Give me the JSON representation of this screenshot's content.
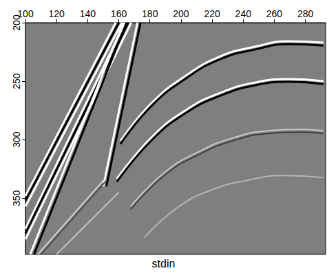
{
  "chart_data": {
    "type": "line",
    "title": "stdin",
    "xlim": [
      100,
      293
    ],
    "xticks": [
      100,
      120,
      140,
      160,
      180,
      200,
      220,
      240,
      260,
      280
    ],
    "ylim": [
      200,
      398
    ],
    "yticks": [
      200,
      250,
      300,
      350
    ],
    "grid": false,
    "series": [
      {
        "color": "#ffffff",
        "x": [
          100,
          158
        ],
        "values": [
          348,
          200
        ]
      },
      {
        "color": "#000000",
        "x": [
          100,
          160
        ],
        "values": [
          352,
          200
        ]
      },
      {
        "color": "#ffffff",
        "x": [
          100,
          162
        ],
        "values": [
          357,
          200
        ]
      },
      {
        "color": "#ffffff",
        "x": [
          100,
          164
        ],
        "values": [
          376,
          200
        ]
      },
      {
        "color": "#000000",
        "x": [
          100,
          166
        ],
        "values": [
          380,
          200
        ]
      },
      {
        "color": "#ffffff",
        "x": [
          100,
          168
        ],
        "values": [
          385,
          200
        ]
      },
      {
        "color": "#ffffff",
        "x": [
          103,
          163
        ],
        "values": [
          398,
          200
        ]
      },
      {
        "color": "#000000",
        "x": [
          105.5,
          165
        ],
        "values": [
          398,
          200
        ]
      },
      {
        "color": "#ffffff",
        "x": [
          150,
          172
        ],
        "values": [
          340,
          200
        ]
      },
      {
        "color": "#000000",
        "x": [
          152,
          174
        ],
        "values": [
          340,
          200
        ]
      },
      {
        "color": "#ffffff",
        "x": [
          161.1,
          181,
          203.1,
          225.2,
          247.3,
          269.5,
          291.6
        ],
        "values": [
          301.2,
          268.8,
          245.3,
          228.8,
          220.6,
          215.9,
          217.1
        ]
      },
      {
        "color": "#000000",
        "x": [
          161.1,
          181,
          203.1,
          225.2,
          247.3,
          269.5,
          291.6
        ],
        "values": [
          303.6,
          271.2,
          247.7,
          231.2,
          223.0,
          218.3,
          219.5
        ]
      },
      {
        "color": "#ffffff",
        "x": [
          158.8,
          181,
          203.1,
          225.2,
          247.3,
          269.5,
          291.6
        ],
        "values": [
          333.5,
          298.2,
          274.7,
          260.0,
          251.2,
          248.2,
          250.0
        ]
      },
      {
        "color": "#000000",
        "x": [
          158.8,
          181,
          203.1,
          225.2,
          247.3,
          269.5,
          291.6
        ],
        "values": [
          335.9,
          300.6,
          277.1,
          262.4,
          253.6,
          250.6,
          252.4
        ]
      },
      {
        "color": "#c8c8c8",
        "x": [
          167.7,
          189.8,
          211.9,
          234.1,
          256.2,
          278.3,
          291.6
        ],
        "values": [
          357.1,
          327.6,
          310.0,
          298.2,
          292.4,
          291.2,
          292.4
        ]
      },
      {
        "color": "#404040",
        "x": [
          167.7,
          189.8,
          211.9,
          234.1,
          256.2,
          278.3,
          291.6
        ],
        "values": [
          359.5,
          330.0,
          312.4,
          300.6,
          294.8,
          293.6,
          294.8
        ]
      },
      {
        "color": "#b4b4b4",
        "x": [
          176.5,
          198.7,
          220.8,
          242.9,
          265.0,
          291.6
        ],
        "values": [
          383.5,
          357.1,
          342.4,
          334.7,
          330.6,
          332.4
        ]
      },
      {
        "color": "#d0d0d0",
        "x": [
          108,
          150
        ],
        "values": [
          398,
          335
        ]
      },
      {
        "color": "#505050",
        "x": [
          110,
          152
        ],
        "values": [
          398,
          335
        ]
      },
      {
        "color": "#c0c0c0",
        "x": [
          120,
          160
        ],
        "values": [
          398,
          345
        ]
      }
    ]
  }
}
